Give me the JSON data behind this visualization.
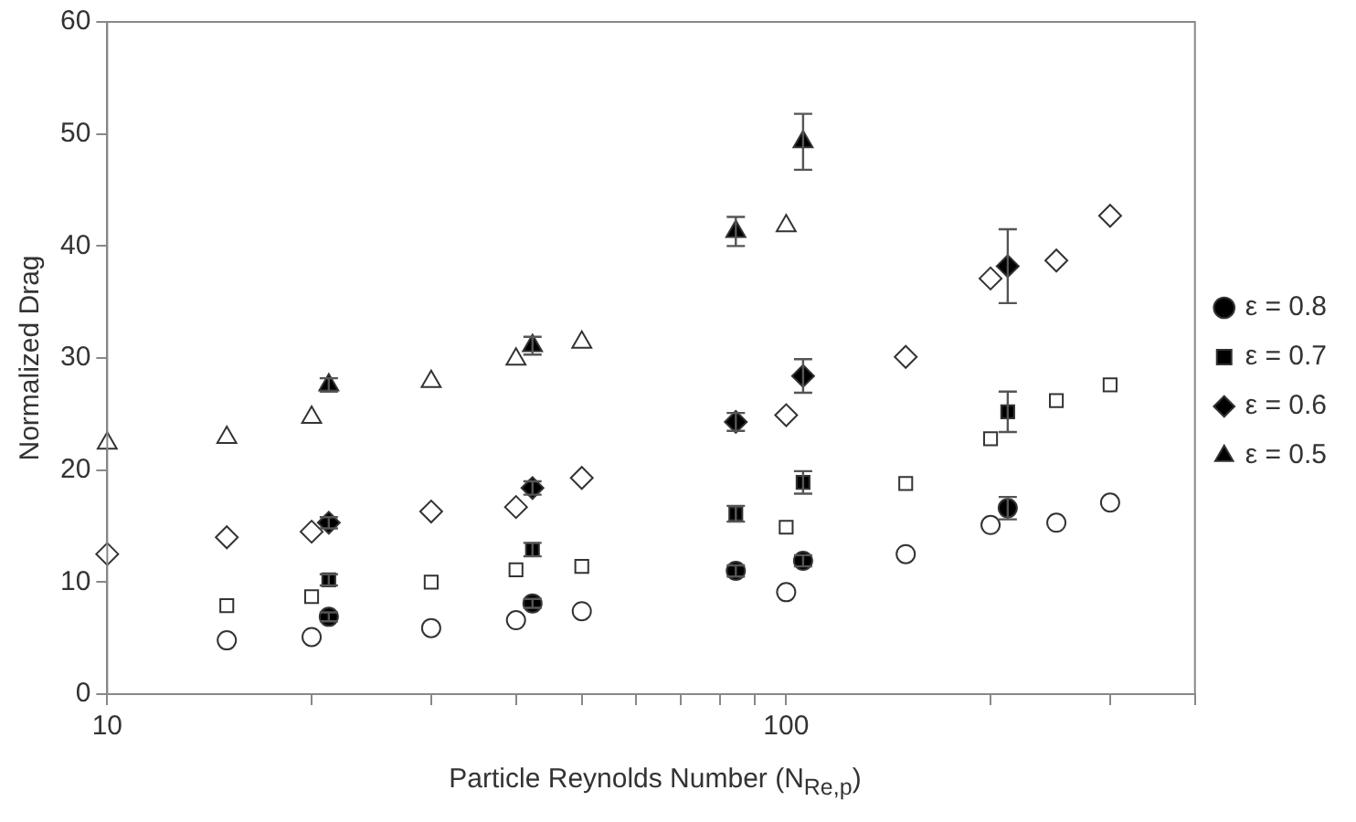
{
  "chart_data": {
    "type": "scatter",
    "xlabel": "Particle Reynolds Number (N$_{Re,p}$)",
    "ylabel": "Normalized Drag",
    "log": "x",
    "xlim": [
      10,
      400
    ],
    "xticks": [
      10,
      {
        "value": 20,
        "label": null
      },
      {
        "value": 30,
        "label": null
      },
      {
        "value": 40,
        "label": null
      },
      {
        "value": 50,
        "label": null
      },
      {
        "value": 60,
        "label": null
      },
      {
        "value": 70,
        "label": null
      },
      {
        "value": 80,
        "label": null
      },
      {
        "value": 90,
        "label": null
      },
      100,
      {
        "value": 200,
        "label": null
      },
      {
        "value": 300,
        "label": null
      },
      {
        "value": 400,
        "label": null
      }
    ],
    "ylim": [
      0,
      60
    ],
    "yticks": [
      0,
      10,
      20,
      30,
      40,
      50,
      60
    ],
    "grid": false,
    "legend": "right",
    "series": [
      {
        "name": "ε = 0.8",
        "color": "#000000",
        "marker": "circle",
        "x": [
          21.2,
          42.3,
          84.3,
          105.9,
          212
        ],
        "values": [
          6.9,
          8.1,
          11.0,
          11.9,
          16.6
        ],
        "errors": [
          0.4,
          0.4,
          0.5,
          0.5,
          1.0
        ]
      },
      {
        "name": "ε = 0.7",
        "color": "#000000",
        "marker": "square",
        "x": [
          21.2,
          42.3,
          84.3,
          105.9,
          212
        ],
        "values": [
          10.2,
          12.9,
          16.1,
          18.9,
          25.2
        ],
        "errors": [
          0.5,
          0.6,
          0.7,
          1.0,
          1.8
        ]
      },
      {
        "name": "ε = 0.6",
        "color": "#000000",
        "marker": "diamond",
        "x": [
          21.2,
          42.3,
          84.3,
          105.9,
          212
        ],
        "values": [
          15.3,
          18.4,
          24.3,
          28.4,
          38.2
        ],
        "errors": [
          0.5,
          0.6,
          0.8,
          1.5,
          3.3
        ]
      },
      {
        "name": "ε = 0.5",
        "color": "#000000",
        "marker": "triangle",
        "x": [
          21.2,
          42.3,
          84.3,
          105.9
        ],
        "values": [
          27.6,
          31.1,
          41.3,
          49.3
        ],
        "errors": [
          0.6,
          0.8,
          1.3,
          2.5
        ]
      },
      {
        "color": "#ffffff",
        "marker": "circle",
        "x": [
          15,
          20,
          30,
          40,
          50,
          100,
          150,
          200,
          250,
          300
        ],
        "values": [
          4.8,
          5.1,
          5.9,
          6.6,
          7.4,
          9.1,
          12.5,
          15.1,
          15.3,
          17.1
        ]
      },
      {
        "color": "#ffffff",
        "marker": "square",
        "x": [
          15,
          20,
          30,
          40,
          50,
          100,
          150,
          200,
          250,
          300
        ],
        "values": [
          7.9,
          8.7,
          10.0,
          11.1,
          11.4,
          14.9,
          18.8,
          22.8,
          26.2,
          27.6
        ]
      },
      {
        "color": "#ffffff",
        "marker": "diamond",
        "x": [
          10,
          15,
          20,
          30,
          40,
          50,
          100,
          150,
          200,
          250,
          300
        ],
        "values": [
          12.5,
          14.0,
          14.5,
          16.3,
          16.7,
          19.3,
          24.9,
          30.1,
          37.1,
          38.7,
          42.7
        ]
      },
      {
        "color": "#ffffff",
        "marker": "triangle",
        "x": [
          10,
          15,
          20,
          30,
          40,
          50,
          100
        ],
        "values": [
          22.4,
          22.9,
          24.7,
          27.9,
          29.9,
          31.4,
          41.8
        ]
      }
    ]
  }
}
